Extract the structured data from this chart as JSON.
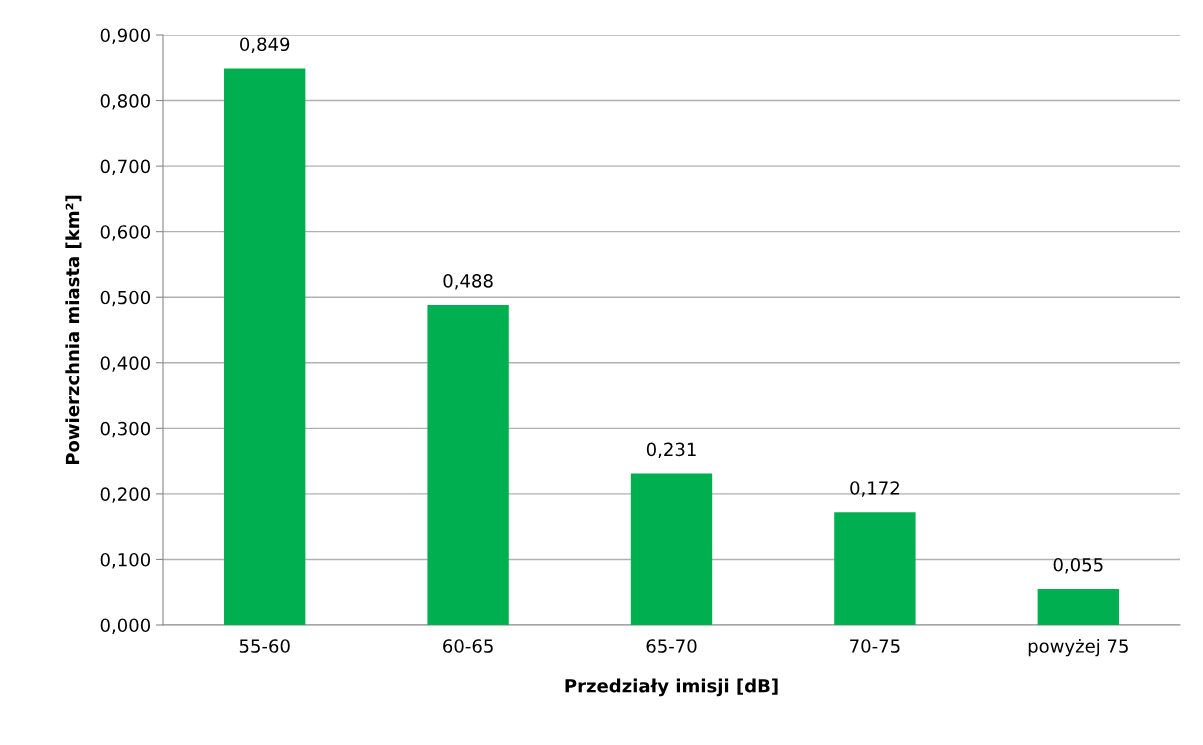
{
  "chart_data": {
    "type": "bar",
    "xlabel": "Przedziały imisji [dB]",
    "ylabel": "Powierzchnia miasta [km²]",
    "categories": [
      "55-60",
      "60-65",
      "65-70",
      "70-75",
      "powyżej 75"
    ],
    "values": [
      0.849,
      0.488,
      0.231,
      0.172,
      0.055
    ],
    "value_labels": [
      "0,849",
      "0,488",
      "0,231",
      "0,172",
      "0,055"
    ],
    "color": "#00b050",
    "ylim": [
      0,
      0.9
    ],
    "yticks": [
      {
        "value": 0,
        "label": "0,000"
      },
      {
        "value": 0.1,
        "label": "0,100"
      },
      {
        "value": 0.2,
        "label": "0,200"
      },
      {
        "value": 0.3,
        "label": "0,300"
      },
      {
        "value": 0.4,
        "label": "0,400"
      },
      {
        "value": 0.5,
        "label": "0,500"
      },
      {
        "value": 0.6,
        "label": "0,600"
      },
      {
        "value": 0.7,
        "label": "0,700"
      },
      {
        "value": 0.8,
        "label": "0,800"
      },
      {
        "value": 0.9,
        "label": "0,900"
      }
    ],
    "grid": "y",
    "legend": false
  }
}
